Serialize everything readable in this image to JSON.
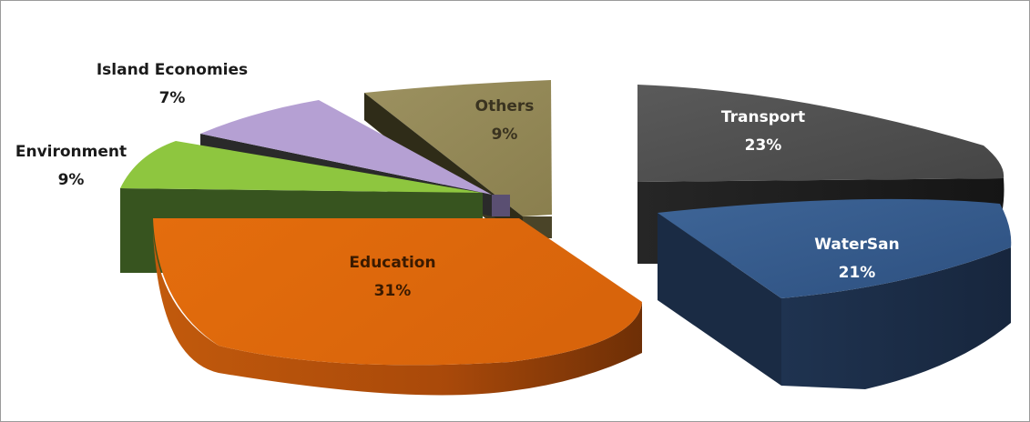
{
  "chart_data": {
    "type": "pie",
    "title": "",
    "exploded": true,
    "three_d": true,
    "slices": [
      {
        "label": "Transport",
        "percent_label": "23%",
        "value": 23,
        "color": "#4d4d4d",
        "label_color": "#ffffff"
      },
      {
        "label": "WaterSan",
        "percent_label": "21%",
        "value": 21,
        "color": "#3a5f8e",
        "label_color": "#ffffff"
      },
      {
        "label": "Education",
        "percent_label": "31%",
        "value": 31,
        "color": "#e0690a",
        "label_color": "#3a1a00"
      },
      {
        "label": "Environment",
        "percent_label": "9%",
        "value": 9,
        "color": "#8bc34a",
        "label_color": "#1a1a1a"
      },
      {
        "label": "Island Economies",
        "percent_label": "7%",
        "value": 7,
        "color": "#b8a3d6",
        "label_color": "#1a1a1a"
      },
      {
        "label": "Others",
        "percent_label": "9%",
        "value": 9,
        "color": "#938953",
        "label_color": "#3a3320"
      }
    ]
  }
}
